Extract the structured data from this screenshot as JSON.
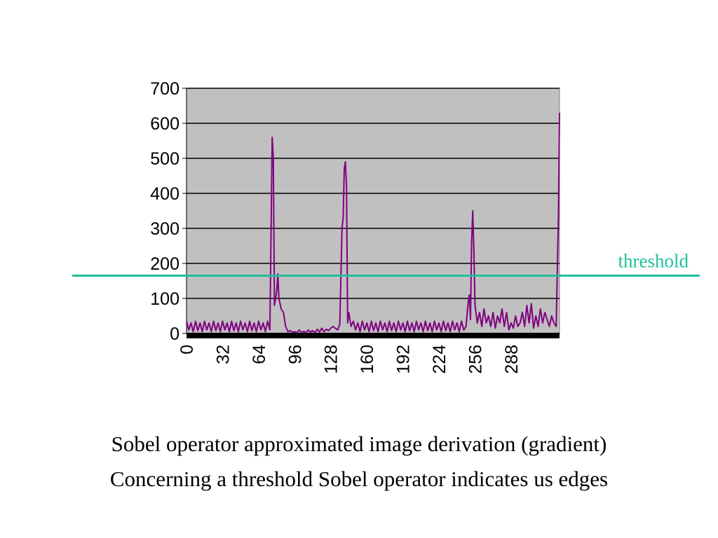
{
  "chart_data": {
    "type": "line",
    "series": [
      {
        "points": [
          [
            0,
            35
          ],
          [
            2,
            10
          ],
          [
            4,
            30
          ],
          [
            6,
            5
          ],
          [
            8,
            35
          ],
          [
            10,
            8
          ],
          [
            12,
            30
          ],
          [
            14,
            5
          ],
          [
            16,
            35
          ],
          [
            18,
            10
          ],
          [
            20,
            30
          ],
          [
            22,
            5
          ],
          [
            24,
            35
          ],
          [
            26,
            8
          ],
          [
            28,
            30
          ],
          [
            30,
            5
          ],
          [
            32,
            35
          ],
          [
            34,
            10
          ],
          [
            36,
            30
          ],
          [
            38,
            5
          ],
          [
            40,
            35
          ],
          [
            42,
            8
          ],
          [
            44,
            30
          ],
          [
            46,
            5
          ],
          [
            48,
            35
          ],
          [
            50,
            10
          ],
          [
            52,
            30
          ],
          [
            54,
            5
          ],
          [
            56,
            35
          ],
          [
            58,
            8
          ],
          [
            60,
            30
          ],
          [
            62,
            5
          ],
          [
            64,
            35
          ],
          [
            66,
            10
          ],
          [
            68,
            30
          ],
          [
            70,
            5
          ],
          [
            72,
            35
          ],
          [
            74,
            10
          ],
          [
            76,
            560
          ],
          [
            77,
            500
          ],
          [
            78,
            80
          ],
          [
            80,
            120
          ],
          [
            81,
            170
          ],
          [
            82,
            100
          ],
          [
            84,
            70
          ],
          [
            86,
            60
          ],
          [
            88,
            20
          ],
          [
            90,
            5
          ],
          [
            92,
            8
          ],
          [
            94,
            3
          ],
          [
            96,
            5
          ],
          [
            98,
            2
          ],
          [
            100,
            10
          ],
          [
            102,
            3
          ],
          [
            104,
            6
          ],
          [
            106,
            2
          ],
          [
            108,
            10
          ],
          [
            110,
            4
          ],
          [
            112,
            8
          ],
          [
            114,
            2
          ],
          [
            116,
            12
          ],
          [
            118,
            4
          ],
          [
            120,
            15
          ],
          [
            122,
            5
          ],
          [
            124,
            12
          ],
          [
            126,
            8
          ],
          [
            128,
            15
          ],
          [
            130,
            20
          ],
          [
            132,
            15
          ],
          [
            134,
            10
          ],
          [
            136,
            25
          ],
          [
            138,
            300
          ],
          [
            139,
            330
          ],
          [
            140,
            470
          ],
          [
            141,
            490
          ],
          [
            142,
            420
          ],
          [
            143,
            30
          ],
          [
            144,
            60
          ],
          [
            146,
            20
          ],
          [
            148,
            35
          ],
          [
            150,
            10
          ],
          [
            152,
            30
          ],
          [
            154,
            5
          ],
          [
            156,
            35
          ],
          [
            158,
            10
          ],
          [
            160,
            30
          ],
          [
            162,
            5
          ],
          [
            164,
            35
          ],
          [
            166,
            8
          ],
          [
            168,
            30
          ],
          [
            170,
            5
          ],
          [
            172,
            35
          ],
          [
            174,
            10
          ],
          [
            176,
            30
          ],
          [
            178,
            5
          ],
          [
            180,
            35
          ],
          [
            182,
            8
          ],
          [
            184,
            30
          ],
          [
            186,
            5
          ],
          [
            188,
            35
          ],
          [
            190,
            10
          ],
          [
            192,
            30
          ],
          [
            194,
            5
          ],
          [
            196,
            35
          ],
          [
            198,
            8
          ],
          [
            200,
            30
          ],
          [
            202,
            5
          ],
          [
            204,
            35
          ],
          [
            206,
            10
          ],
          [
            208,
            30
          ],
          [
            210,
            5
          ],
          [
            212,
            35
          ],
          [
            214,
            8
          ],
          [
            216,
            30
          ],
          [
            218,
            5
          ],
          [
            220,
            35
          ],
          [
            222,
            10
          ],
          [
            224,
            30
          ],
          [
            226,
            5
          ],
          [
            228,
            35
          ],
          [
            230,
            8
          ],
          [
            232,
            30
          ],
          [
            234,
            5
          ],
          [
            236,
            35
          ],
          [
            238,
            10
          ],
          [
            240,
            30
          ],
          [
            242,
            5
          ],
          [
            244,
            35
          ],
          [
            246,
            10
          ],
          [
            248,
            20
          ],
          [
            250,
            90
          ],
          [
            251,
            110
          ],
          [
            252,
            40
          ],
          [
            253,
            260
          ],
          [
            254,
            350
          ],
          [
            255,
            240
          ],
          [
            256,
            80
          ],
          [
            258,
            30
          ],
          [
            260,
            60
          ],
          [
            262,
            20
          ],
          [
            264,
            70
          ],
          [
            266,
            30
          ],
          [
            268,
            50
          ],
          [
            270,
            20
          ],
          [
            272,
            60
          ],
          [
            274,
            15
          ],
          [
            276,
            50
          ],
          [
            278,
            30
          ],
          [
            280,
            70
          ],
          [
            282,
            20
          ],
          [
            284,
            60
          ],
          [
            286,
            10
          ],
          [
            288,
            30
          ],
          [
            290,
            15
          ],
          [
            292,
            50
          ],
          [
            294,
            20
          ],
          [
            296,
            30
          ],
          [
            298,
            60
          ],
          [
            300,
            20
          ],
          [
            302,
            80
          ],
          [
            304,
            30
          ],
          [
            306,
            85
          ],
          [
            308,
            15
          ],
          [
            310,
            50
          ],
          [
            312,
            20
          ],
          [
            314,
            70
          ],
          [
            316,
            30
          ],
          [
            318,
            60
          ],
          [
            320,
            40
          ],
          [
            322,
            20
          ],
          [
            324,
            50
          ],
          [
            326,
            30
          ],
          [
            328,
            20
          ],
          [
            330,
            330
          ],
          [
            331,
            630
          ]
        ]
      }
    ],
    "x_ticks": [
      "0",
      "32",
      "64",
      "96",
      "128",
      "160",
      "192",
      "224",
      "256",
      "288"
    ],
    "x_tick_values": [
      0,
      32,
      64,
      96,
      128,
      160,
      192,
      224,
      256,
      288
    ],
    "y_ticks": [
      "0",
      "100",
      "200",
      "300",
      "400",
      "500",
      "600",
      "700"
    ],
    "y_tick_values": [
      0,
      100,
      200,
      300,
      400,
      500,
      600,
      700
    ],
    "xlim": [
      0,
      331
    ],
    "ylim": [
      0,
      700
    ],
    "grid": "horizontal",
    "threshold": {
      "label": "threshold",
      "value": 165
    },
    "colors": {
      "line": "#800080",
      "plot_background": "#c0c0c0",
      "grid": "#000000",
      "threshold": "#1fbf99",
      "baseline": "#000000"
    }
  },
  "caption": {
    "line1": "Sobel operator approximated image derivation (gradient)",
    "line2": "Concerning a threshold Sobel operator indicates us edges"
  }
}
